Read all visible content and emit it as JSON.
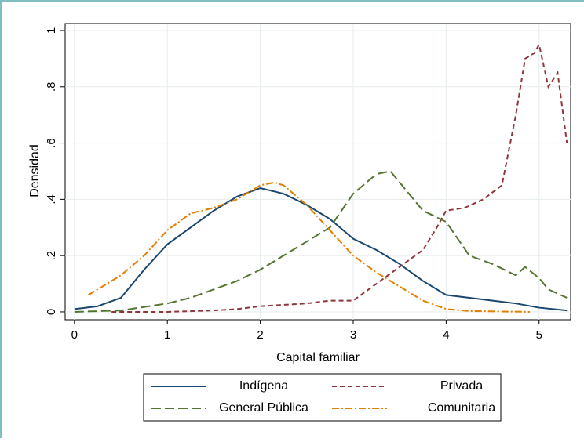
{
  "chart_data": {
    "type": "line",
    "x_label": "Capital familiar",
    "y_label": "Densidad",
    "xlim": [
      -0.1,
      5.34
    ],
    "ylim": [
      -0.028,
      1.025
    ],
    "xticks": [
      0,
      1,
      2,
      3,
      4,
      5
    ],
    "yticks": [
      0,
      {
        "value": 0.2,
        "label": ".2"
      },
      {
        "value": 0.4,
        "label": ".4"
      },
      {
        "value": 0.6,
        "label": ".6"
      },
      {
        "value": 0.8,
        "label": ".8"
      },
      1
    ],
    "grid": true,
    "legend": "bottom",
    "series": [
      {
        "name": "Indígena",
        "color": "#1a476f",
        "style": "solid",
        "x": [
          0,
          0.25,
          0.5,
          0.75,
          1,
          1.25,
          1.5,
          1.75,
          2,
          2.25,
          2.5,
          2.75,
          3,
          3.25,
          3.5,
          3.75,
          4,
          4.25,
          4.5,
          4.75,
          5,
          5.3
        ],
        "values": [
          0.01,
          0.02,
          0.05,
          0.15,
          0.24,
          0.3,
          0.36,
          0.41,
          0.44,
          0.42,
          0.38,
          0.33,
          0.26,
          0.22,
          0.17,
          0.11,
          0.06,
          0.05,
          0.04,
          0.03,
          0.015,
          0.005
        ]
      },
      {
        "name": "Privada",
        "color": "#90353b",
        "style": "dash",
        "x": [
          0.4,
          1,
          1.5,
          1.75,
          2,
          2.5,
          2.75,
          3,
          3.25,
          3.5,
          3.75,
          3.9,
          4,
          4.2,
          4.4,
          4.6,
          4.75,
          4.85,
          4.95,
          5,
          5.1,
          5.2,
          5.3
        ],
        "values": [
          0,
          0,
          0.005,
          0.01,
          0.02,
          0.03,
          0.04,
          0.04,
          0.1,
          0.16,
          0.22,
          0.3,
          0.36,
          0.37,
          0.4,
          0.45,
          0.7,
          0.9,
          0.92,
          0.95,
          0.8,
          0.85,
          0.6
        ]
      },
      {
        "name": "General Pública",
        "color": "#55752f",
        "style": "longdash",
        "x": [
          0,
          0.5,
          1,
          1.25,
          1.5,
          1.75,
          2,
          2.25,
          2.5,
          2.75,
          3,
          3.25,
          3.4,
          3.5,
          3.75,
          4,
          4.25,
          4.5,
          4.75,
          4.85,
          5,
          5.1,
          5.3
        ],
        "values": [
          0,
          0.005,
          0.03,
          0.05,
          0.08,
          0.11,
          0.15,
          0.2,
          0.25,
          0.3,
          0.42,
          0.49,
          0.5,
          0.46,
          0.36,
          0.32,
          0.2,
          0.17,
          0.13,
          0.16,
          0.12,
          0.08,
          0.05
        ]
      },
      {
        "name": "Comunitaria",
        "color": "#e37e00",
        "style": "dashdot",
        "x": [
          0.15,
          0.5,
          0.75,
          1,
          1.25,
          1.5,
          1.75,
          2,
          2.15,
          2.25,
          2.5,
          2.75,
          3,
          3.25,
          3.5,
          3.75,
          4,
          4.25,
          4.9
        ],
        "values": [
          0.06,
          0.13,
          0.2,
          0.29,
          0.35,
          0.37,
          0.4,
          0.45,
          0.46,
          0.45,
          0.38,
          0.29,
          0.2,
          0.14,
          0.09,
          0.04,
          0.01,
          0.003,
          0
        ]
      }
    ]
  }
}
